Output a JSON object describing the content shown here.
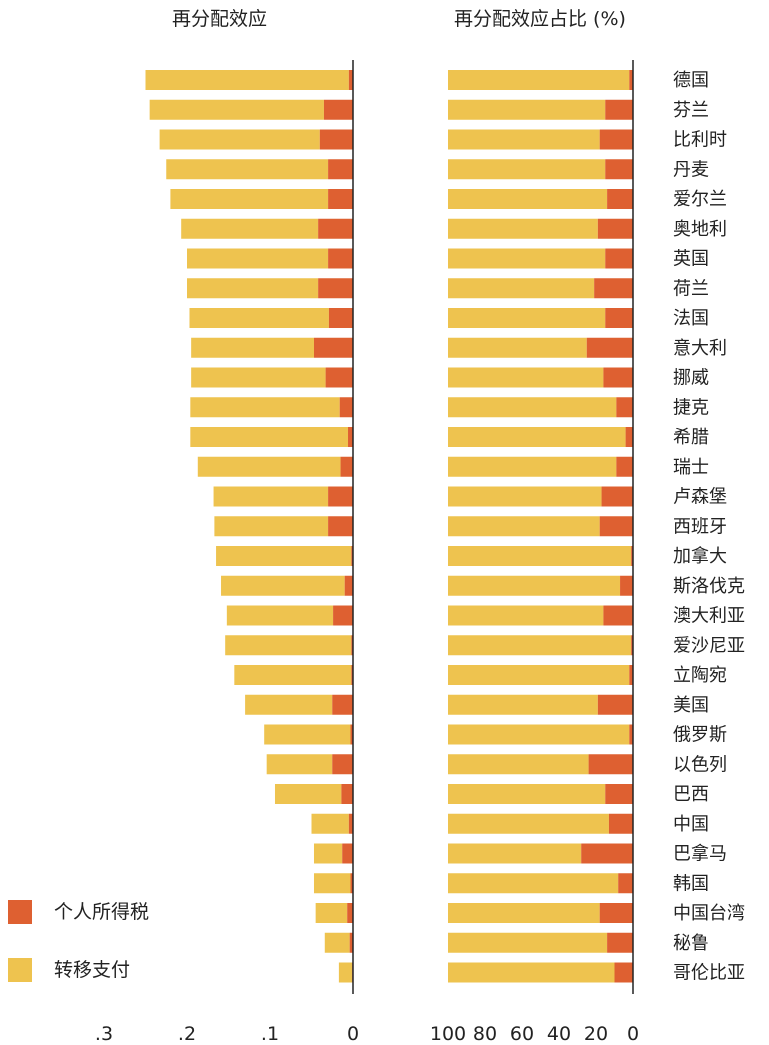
{
  "colors": {
    "tax": "#de6031",
    "transfer": "#eec34f",
    "axis": "#222222"
  },
  "chart_data": [
    {
      "type": "bar",
      "orientation": "horizontal",
      "stacked": true,
      "title": "再分配效应",
      "categories": [
        "德国",
        "芬兰",
        "比利时",
        "丹麦",
        "爱尔兰",
        "奥地利",
        "英国",
        "荷兰",
        "法国",
        "意大利",
        "挪威",
        "捷克",
        "希腊",
        "瑞士",
        "卢森堡",
        "西班牙",
        "加拿大",
        "斯洛伐克",
        "澳大利亚",
        "爱沙尼亚",
        "立陶宛",
        "美国",
        "俄罗斯",
        "以色列",
        "巴西",
        "中国",
        "巴拿马",
        "韩国",
        "中国台湾",
        "秘鲁",
        "哥伦比亚"
      ],
      "series": [
        {
          "name": "个人所得税",
          "values": [
            0.005,
            0.035,
            0.04,
            0.03,
            0.03,
            0.042,
            0.03,
            0.042,
            0.029,
            0.047,
            0.033,
            0.016,
            0.006,
            0.015,
            0.03,
            0.03,
            0.002,
            0.01,
            0.024,
            0.002,
            0.002,
            0.025,
            0.003,
            0.025,
            0.014,
            0.005,
            0.013,
            0.003,
            0.007,
            0.004,
            0.001
          ]
        },
        {
          "name": "转移支付",
          "values": [
            0.245,
            0.21,
            0.193,
            0.195,
            0.19,
            0.165,
            0.17,
            0.158,
            0.168,
            0.148,
            0.162,
            0.18,
            0.19,
            0.172,
            0.138,
            0.137,
            0.163,
            0.149,
            0.128,
            0.152,
            0.141,
            0.105,
            0.104,
            0.079,
            0.08,
            0.045,
            0.034,
            0.044,
            0.038,
            0.03,
            0.016
          ]
        }
      ],
      "xlim": [
        0.3,
        0
      ],
      "xticks": [
        ".3",
        ".2",
        ".1",
        "0"
      ]
    },
    {
      "type": "bar",
      "orientation": "horizontal",
      "stacked": true,
      "title": "再分配效应占比 (%)",
      "categories": [
        "德国",
        "芬兰",
        "比利时",
        "丹麦",
        "爱尔兰",
        "奥地利",
        "英国",
        "荷兰",
        "法国",
        "意大利",
        "挪威",
        "捷克",
        "希腊",
        "瑞士",
        "卢森堡",
        "西班牙",
        "加拿大",
        "斯洛伐克",
        "澳大利亚",
        "爱沙尼亚",
        "立陶宛",
        "美国",
        "俄罗斯",
        "以色列",
        "巴西",
        "中国",
        "巴拿马",
        "韩国",
        "中国台湾",
        "秘鲁",
        "哥伦比亚"
      ],
      "series": [
        {
          "name": "个人所得税",
          "values": [
            2,
            15,
            18,
            15,
            14,
            19,
            15,
            21,
            15,
            25,
            16,
            9,
            4,
            9,
            17,
            18,
            1,
            7,
            16,
            1,
            2,
            19,
            2,
            24,
            15,
            13,
            28,
            8,
            18,
            14,
            10
          ]
        },
        {
          "name": "转移支付",
          "values": [
            98,
            85,
            82,
            85,
            86,
            81,
            85,
            79,
            85,
            75,
            84,
            91,
            96,
            91,
            83,
            82,
            99,
            93,
            84,
            99,
            98,
            81,
            98,
            76,
            85,
            87,
            72,
            92,
            82,
            86,
            90
          ]
        }
      ],
      "xlim": [
        100,
        0
      ],
      "xticks": [
        "100",
        "80",
        "60",
        "40",
        "20",
        "0"
      ]
    }
  ],
  "legend": {
    "tax_label": "个人所得税",
    "transfer_label": "转移支付"
  }
}
